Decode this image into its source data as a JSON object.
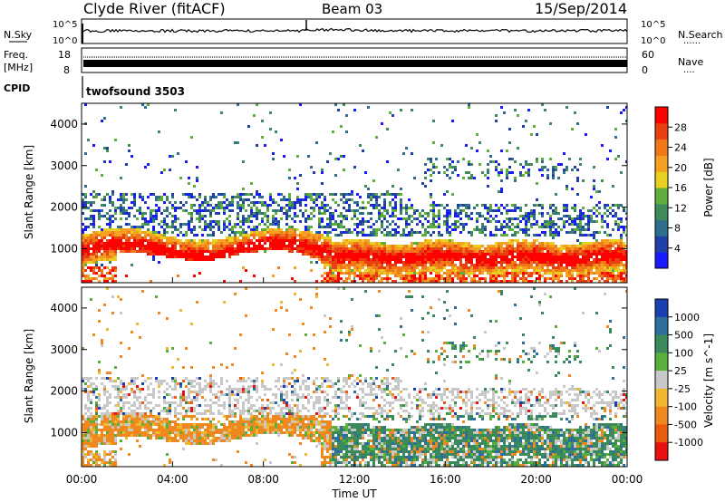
{
  "header": {
    "station": "Clyde River (fitACF)",
    "beam": "Beam 03",
    "date": "15/Sep/2014"
  },
  "noise_panel": {
    "left_label": "N.Sky",
    "right_label": "N.Search",
    "right_dots": "......",
    "left_ticks": [
      "10^5",
      "10^0"
    ],
    "right_ticks": [
      "10^5",
      "10^0"
    ]
  },
  "freq_panel": {
    "left_label_1": "Freq.",
    "left_label_2": "[MHz]",
    "right_label": "Nave",
    "right_dots": "....",
    "left_ticks": [
      "18",
      "8"
    ],
    "right_ticks": [
      "60",
      "0"
    ]
  },
  "cpid": {
    "label": "CPID",
    "program": "twofsound 3503"
  },
  "time_axis": {
    "label": "Time UT",
    "ticks": [
      "00:00",
      "04:00",
      "08:00",
      "12:00",
      "16:00",
      "20:00",
      "00:00"
    ]
  },
  "chart_data": [
    {
      "type": "heatmap",
      "title": "",
      "xlabel": "Time UT",
      "ylabel": "Slant Range [km]",
      "xlim": [
        "00:00",
        "24:00"
      ],
      "ylim": [
        180,
        4500
      ],
      "y_ticks": [
        1000,
        2000,
        3000,
        4000
      ],
      "colorbar": {
        "label": "Power [dB]",
        "tick_labels": [
          "4",
          "8",
          "12",
          "16",
          "20",
          "24",
          "28"
        ],
        "colors": [
          "#1a1aff",
          "#2040a8",
          "#2e6e8e",
          "#3f8a5a",
          "#5fae3c",
          "#e8d020",
          "#f5a020",
          "#f07818",
          "#e84010",
          "#ff0000"
        ]
      },
      "features": [
        {
          "time_range": [
            "00:00",
            "24:00"
          ],
          "range_km": [
            600,
            1300
          ],
          "level_db": "20-28",
          "note": "strong main scatter band"
        },
        {
          "time_range": [
            "02:00",
            "11:00"
          ],
          "range_km": [
            1800,
            2400
          ],
          "level_db": "8-16"
        },
        {
          "time_range": [
            "16:00",
            "22:00"
          ],
          "range_km": [
            2800,
            3200
          ],
          "level_db": "8-12"
        }
      ]
    },
    {
      "type": "heatmap",
      "title": "",
      "xlabel": "Time UT",
      "ylabel": "Slant Range [km]",
      "xlim": [
        "00:00",
        "24:00"
      ],
      "ylim": [
        180,
        4500
      ],
      "y_ticks": [
        1000,
        2000,
        3000,
        4000
      ],
      "colorbar": {
        "label": "Velocity [m s^-1]",
        "tick_labels": [
          "1000",
          "500",
          "100",
          "25",
          "-25",
          "-100",
          "-500",
          "-1000"
        ],
        "colors": [
          "#1a3fb0",
          "#2d6e9a",
          "#3a8a5c",
          "#58b03a",
          "#c8c8c8",
          "#f0b830",
          "#f08820",
          "#ec5a10",
          "#e81010"
        ]
      },
      "features": [
        {
          "time_range": [
            "00:00",
            "11:00"
          ],
          "range_km": [
            700,
            1800
          ],
          "level_ms": "-100 to -500",
          "note": "orange band"
        },
        {
          "time_range": [
            "11:00",
            "24:00"
          ],
          "range_km": [
            500,
            1500
          ],
          "level_ms": "100 to 500",
          "note": "green band"
        },
        {
          "time_range": [
            "00:00",
            "24:00"
          ],
          "range_km": [
            1500,
            2300
          ],
          "level_ms": "-25 to 25",
          "note": "grey ground scatter"
        }
      ]
    }
  ]
}
